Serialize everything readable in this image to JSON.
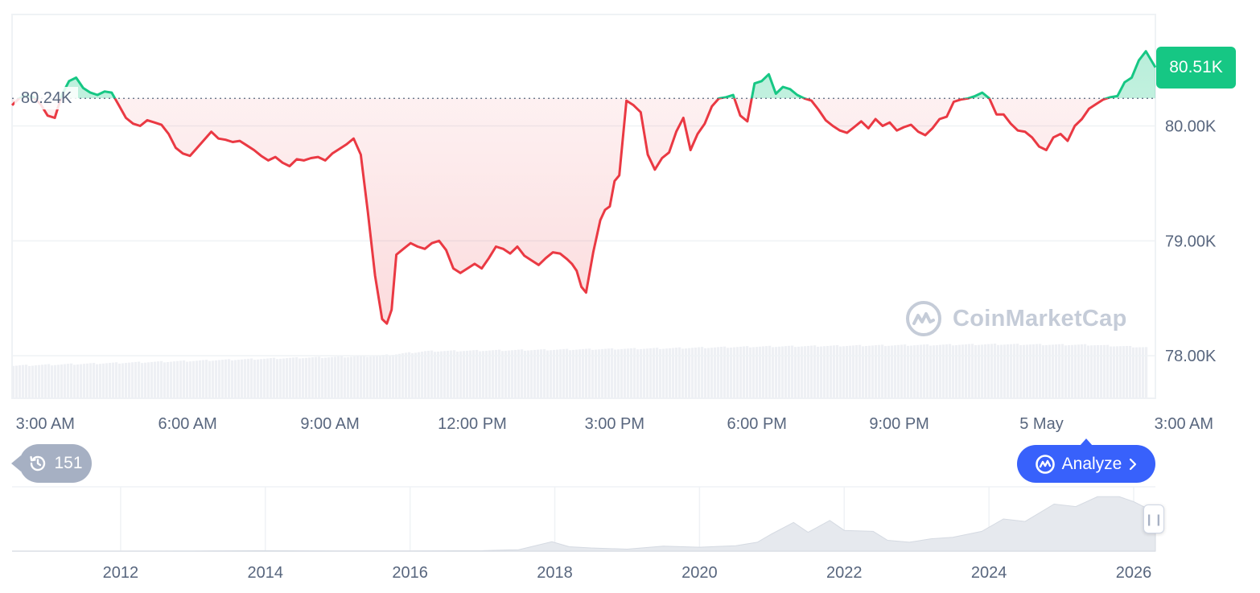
{
  "chart_data": {
    "type": "line",
    "main": {
      "y_ticks": [
        "80.00K",
        "79.00K",
        "78.00K"
      ],
      "y_tick_values": [
        80000,
        79000,
        78000
      ],
      "ylim": [
        77630,
        80970
      ],
      "x_ticks": [
        "3:00 AM",
        "6:00 AM",
        "9:00 AM",
        "12:00 PM",
        "3:00 PM",
        "6:00 PM",
        "9:00 PM",
        "5 May",
        "3:00 AM"
      ],
      "x_tick_hours": [
        0,
        3,
        6,
        9,
        12,
        15,
        18,
        21,
        24
      ],
      "x_range_hours": [
        -0.7,
        23.4
      ],
      "reference_value": 80240,
      "reference_label": "80.24K",
      "last_price_label": "80.51K",
      "last_price_value": 80510,
      "up_color": "#16c784",
      "down_color": "#ea3943",
      "series": [
        {
          "x": [
            -0.7,
            -0.55,
            -0.4,
            -0.25,
            -0.1,
            0.05,
            0.2,
            0.35,
            0.5,
            0.65,
            0.8,
            0.95,
            1.1,
            1.25,
            1.4,
            1.55,
            1.7,
            1.85,
            2.0,
            2.15,
            2.3,
            2.45,
            2.6,
            2.75,
            2.9,
            3.05,
            3.2,
            3.35,
            3.5,
            3.65,
            3.8,
            3.95,
            4.1,
            4.25,
            4.4,
            4.55,
            4.7,
            4.85,
            5.0,
            5.15,
            5.3,
            5.45,
            5.6,
            5.75,
            5.9,
            6.05,
            6.2,
            6.35,
            6.5,
            6.65,
            6.8,
            6.95,
            7.1,
            7.2,
            7.3,
            7.4,
            7.55,
            7.7,
            7.85,
            8.0,
            8.15,
            8.3,
            8.45,
            8.6,
            8.75,
            8.9,
            9.05,
            9.2,
            9.35,
            9.5,
            9.65,
            9.8,
            9.95,
            10.1,
            10.25,
            10.4,
            10.55,
            10.7,
            10.85,
            11.0,
            11.1,
            11.2,
            11.3,
            11.4,
            11.55,
            11.7,
            11.8,
            11.9,
            12.0,
            12.1,
            12.25,
            12.4,
            12.55,
            12.7,
            12.85,
            13.0,
            13.15,
            13.3,
            13.45,
            13.6,
            13.75,
            13.9,
            14.05,
            14.2,
            14.35,
            14.5,
            14.65,
            14.8,
            14.95,
            15.1,
            15.25,
            15.4,
            15.55,
            15.7,
            15.85,
            16.0,
            16.15,
            16.3,
            16.45,
            16.6,
            16.75,
            16.9,
            17.05,
            17.2,
            17.35,
            17.5,
            17.65,
            17.8,
            17.95,
            18.1,
            18.25,
            18.4,
            18.55,
            18.7,
            18.85,
            19.0,
            19.15,
            19.3,
            19.45,
            19.6,
            19.75,
            19.9,
            20.05,
            20.2,
            20.35,
            20.5,
            20.65,
            20.8,
            20.95,
            21.1,
            21.25,
            21.4,
            21.55,
            21.7,
            21.85,
            22.0,
            22.15,
            22.3,
            22.45,
            22.6,
            22.75,
            22.9,
            23.05,
            23.2,
            23.4
          ],
          "y": [
            80180,
            80240,
            80270,
            80250,
            80190,
            80090,
            80070,
            80270,
            80390,
            80420,
            80330,
            80290,
            80270,
            80300,
            80290,
            80180,
            80070,
            80020,
            80000,
            80050,
            80030,
            80010,
            79930,
            79810,
            79760,
            79740,
            79810,
            79880,
            79950,
            79890,
            79880,
            79860,
            79870,
            79830,
            79790,
            79740,
            79700,
            79730,
            79680,
            79650,
            79710,
            79700,
            79720,
            79730,
            79700,
            79760,
            79800,
            79840,
            79890,
            79750,
            79250,
            78700,
            78320,
            78280,
            78400,
            78880,
            78930,
            78980,
            78950,
            78930,
            78980,
            79000,
            78920,
            78760,
            78720,
            78760,
            78800,
            78760,
            78850,
            78950,
            78930,
            78890,
            78950,
            78870,
            78830,
            78790,
            78850,
            78900,
            78890,
            78840,
            78800,
            78740,
            78600,
            78550,
            78900,
            79180,
            79270,
            79300,
            79520,
            79570,
            80220,
            80180,
            80120,
            79750,
            79620,
            79720,
            79770,
            79950,
            80070,
            79790,
            79930,
            80020,
            80170,
            80240,
            80250,
            80270,
            80090,
            80040,
            80370,
            80390,
            80450,
            80280,
            80340,
            80320,
            80270,
            80240,
            80220,
            80140,
            80050,
            80000,
            79960,
            79940,
            79990,
            80040,
            79980,
            80060,
            80000,
            80030,
            79960,
            79990,
            80010,
            79950,
            79920,
            79980,
            80060,
            80080,
            80210,
            80230,
            80240,
            80260,
            80290,
            80240,
            80100,
            80100,
            80020,
            79960,
            79950,
            79900,
            79820,
            79790,
            79900,
            79930,
            79870,
            80000,
            80060,
            80150,
            80190,
            80230,
            80250,
            80260,
            80380,
            80420,
            80570,
            80650,
            80510
          ]
        }
      ]
    },
    "navigator": {
      "x_ticks": [
        "2012",
        "2014",
        "2016",
        "2018",
        "2020",
        "2022",
        "2024",
        "2026"
      ],
      "x_tick_values": [
        2012,
        2014,
        2016,
        2018,
        2020,
        2022,
        2024,
        2026
      ],
      "x_range": [
        2010.5,
        2026.3
      ],
      "ylim": [
        0,
        130000
      ],
      "series": [
        {
          "x": [
            2010.5,
            2012,
            2013,
            2013.9,
            2015,
            2016,
            2017,
            2017.5,
            2017.96,
            2018.2,
            2018.5,
            2019,
            2019.5,
            2020,
            2020.5,
            2020.8,
            2021.0,
            2021.3,
            2021.5,
            2021.8,
            2022.0,
            2022.4,
            2022.6,
            2022.9,
            2023.2,
            2023.5,
            2023.9,
            2024.2,
            2024.5,
            2024.9,
            2025.2,
            2025.5,
            2025.8,
            2026.0,
            2026.3
          ],
          "y": [
            0,
            5,
            100,
            900,
            300,
            450,
            1000,
            3000,
            19000,
            9000,
            6500,
            4000,
            10000,
            8000,
            11000,
            18000,
            35000,
            58000,
            38000,
            62000,
            42000,
            40000,
            22000,
            18000,
            25000,
            28000,
            40000,
            65000,
            60000,
            95000,
            90000,
            110000,
            110000,
            100000,
            78000
          ]
        }
      ]
    },
    "volume": {
      "x": [
        -0.7,
        2.5,
        5.0,
        7.0,
        8.0,
        10.0,
        13.0,
        15.0,
        17.5,
        20.0,
        22.0,
        23.4
      ],
      "y": [
        0.55,
        0.62,
        0.68,
        0.72,
        0.8,
        0.82,
        0.85,
        0.88,
        0.9,
        0.92,
        0.91,
        0.86
      ]
    }
  },
  "history_count": "151",
  "analyze_label": "Analyze",
  "watermark_text": "CoinMarketCap"
}
